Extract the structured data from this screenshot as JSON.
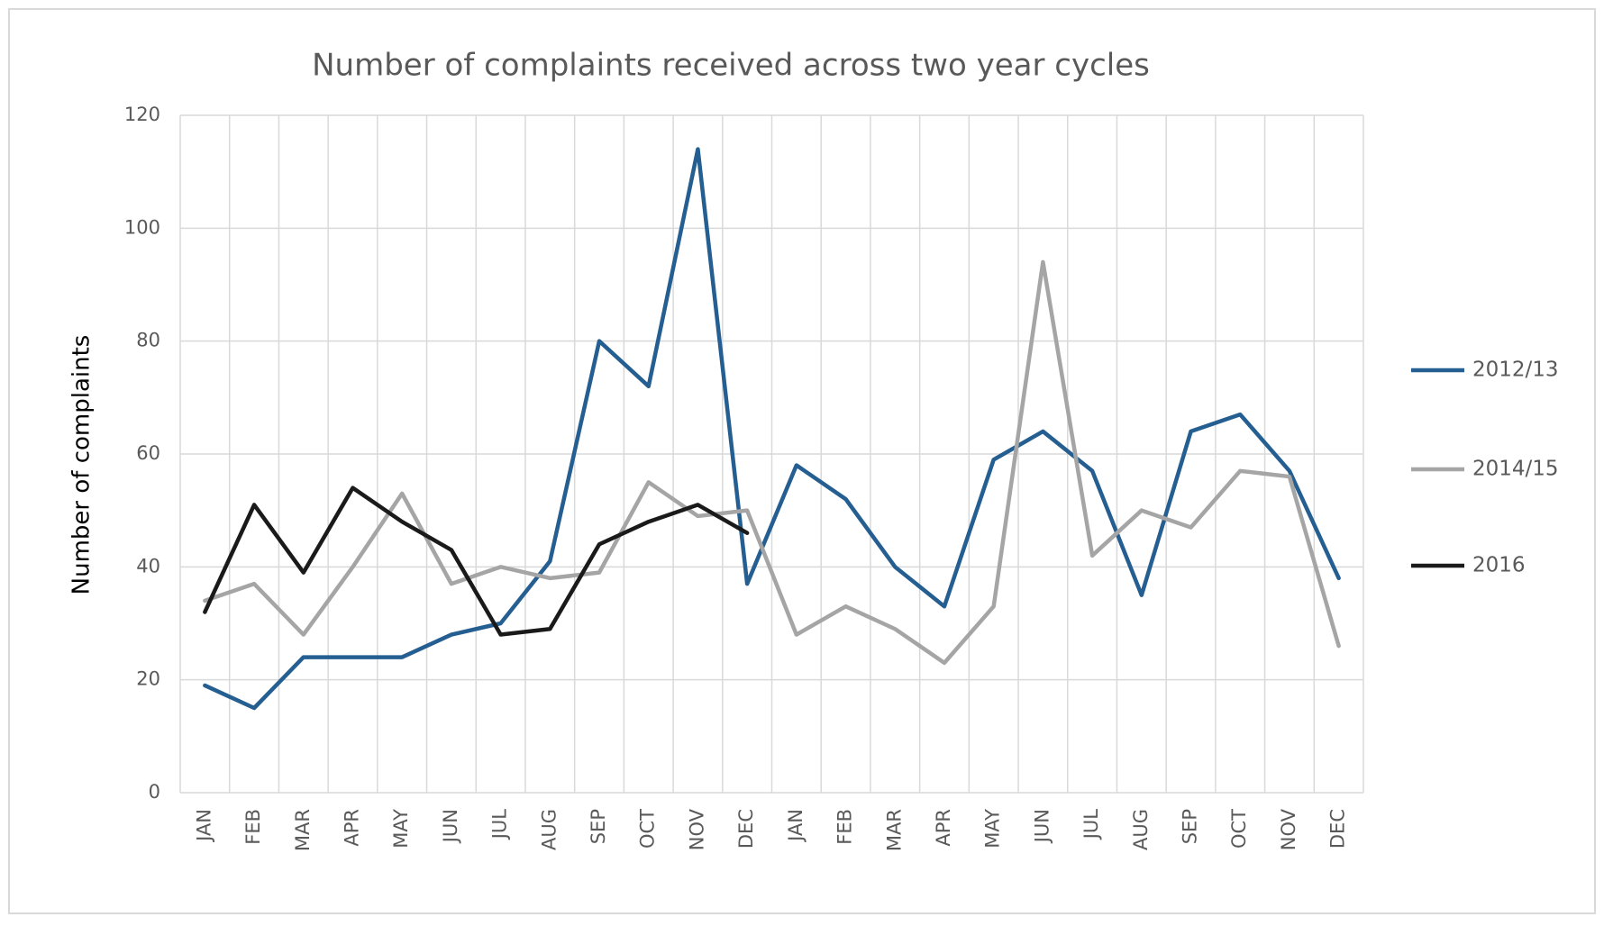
{
  "chart_data": {
    "type": "line",
    "title": "Number of complaints received across two year cycles",
    "y_label": "Number of complaints",
    "categories": [
      "JAN",
      "FEB",
      "MAR",
      "APR",
      "MAY",
      "JUN",
      "JUL",
      "AUG",
      "SEP",
      "OCT",
      "NOV",
      "DEC",
      "JAN",
      "FEB",
      "MAR",
      "APR",
      "MAY",
      "JUN",
      "JUL",
      "AUG",
      "SEP",
      "OCT",
      "NOV",
      "DEC"
    ],
    "series": [
      {
        "name": "2012/13",
        "color": "#255e91",
        "values": [
          19,
          15,
          24,
          24,
          24,
          28,
          30,
          41,
          80,
          72,
          114,
          37,
          58,
          52,
          40,
          33,
          59,
          64,
          57,
          35,
          64,
          67,
          57,
          38
        ]
      },
      {
        "name": "2014/15",
        "color": "#a5a5a5",
        "values": [
          34,
          37,
          28,
          40,
          53,
          37,
          40,
          38,
          39,
          55,
          49,
          50,
          28,
          33,
          29,
          23,
          33,
          94,
          42,
          50,
          47,
          57,
          56,
          26
        ]
      },
      {
        "name": "2016",
        "color": "#1a1a1a",
        "values": [
          32,
          51,
          39,
          54,
          48,
          43,
          28,
          29,
          44,
          48,
          51,
          46,
          null,
          null,
          null,
          null,
          null,
          null,
          null,
          null,
          null,
          null,
          null,
          null
        ]
      }
    ],
    "ylim": [
      0,
      120
    ],
    "yticks": [
      0,
      20,
      40,
      60,
      80,
      100,
      120
    ],
    "grid": true,
    "legend": "right"
  }
}
